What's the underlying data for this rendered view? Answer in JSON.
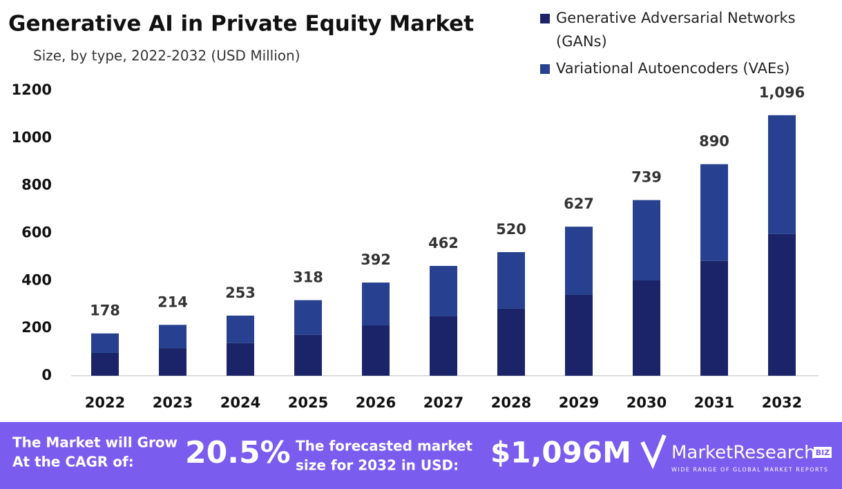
{
  "chart_data": {
    "type": "stacked_bar",
    "title": "Generative AI in Private Equity Market",
    "subtitle": "Size, by type, 2022-2032 (USD Million)",
    "categories": [
      "2022",
      "2023",
      "2024",
      "2025",
      "2026",
      "2027",
      "2028",
      "2029",
      "2030",
      "2031",
      "2032"
    ],
    "series": [
      {
        "name": "Generative Adversarial Networks (GANs)",
        "color": "#1b2468",
        "values": [
          96,
          116,
          137,
          172,
          212,
          250,
          282,
          340,
          401,
          483,
          596
        ]
      },
      {
        "name": "Variational Autoencoders (VAEs)",
        "color": "#27408f",
        "values": [
          82,
          98,
          116,
          146,
          180,
          212,
          238,
          287,
          338,
          407,
          500
        ]
      }
    ],
    "totals": {
      "values": [
        178,
        214,
        253,
        318,
        392,
        462,
        520,
        627,
        739,
        890,
        1096
      ],
      "value_labels": [
        "178",
        "214",
        "253",
        "318",
        "392",
        "462",
        "520",
        "627",
        "739",
        "890",
        "1,096"
      ]
    },
    "ylim": [
      0,
      1200
    ],
    "yticks": [
      0,
      200,
      400,
      600,
      800,
      1000,
      1200
    ],
    "legend": "top-right"
  },
  "footer": {
    "cagr_text": [
      "The Market will Grow",
      "At the CAGR of:"
    ],
    "cagr": "20.5%",
    "forecast_text": [
      "The forecasted market",
      "size for 2032 in USD:"
    ],
    "forecast": "$1,096M",
    "brand": "MarketResearch",
    "brand_badge": "BIZ",
    "tagline": "WIDE RANGE OF GLOBAL MARKET REPORTS"
  }
}
